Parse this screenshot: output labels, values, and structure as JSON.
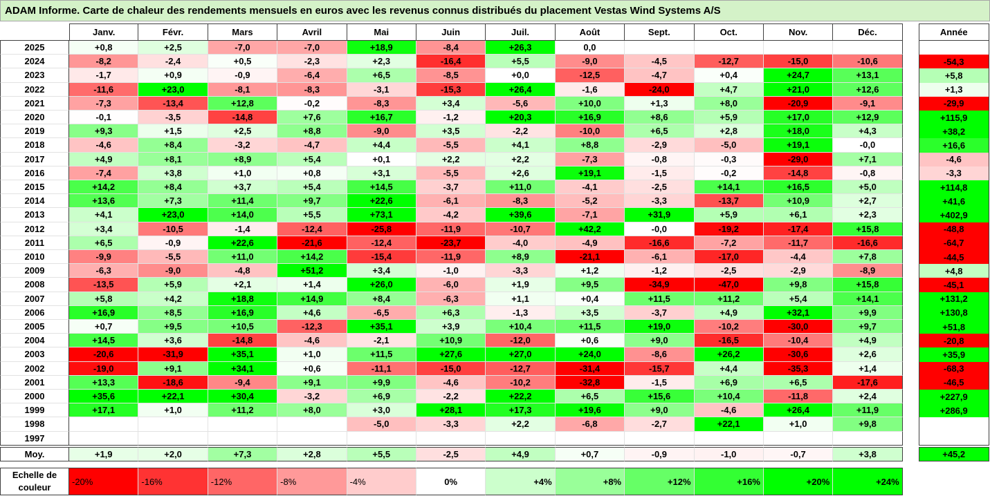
{
  "colors": {
    "title_bar": "#d4f2c8",
    "border": "#3f3f3f"
  },
  "chart_data": {
    "type": "heatmap",
    "title": "ADAM Informe. Carte de chaleur des rendements mensuels en euros avec les revenus connus distribués du placement Vestas Wind Systems A/S",
    "columns": [
      "Janv.",
      "Févr.",
      "Mars",
      "Avril",
      "Mai",
      "Juin",
      "Juil.",
      "Août",
      "Sept.",
      "Oct.",
      "Nov.",
      "Déc."
    ],
    "annual_label": "Année",
    "rows": [
      {
        "year": "2025",
        "values": [
          "+0,8",
          "+2,5",
          "-7,0",
          "-7,0",
          "+18,9",
          "-8,4",
          "+26,3",
          "0,0",
          "",
          "",
          "",
          ""
        ],
        "annual": ""
      },
      {
        "year": "2024",
        "values": [
          "-8,2",
          "-2,4",
          "+0,5",
          "-2,3",
          "+2,3",
          "-16,4",
          "+5,5",
          "-9,0",
          "-4,5",
          "-12,7",
          "-15,0",
          "-10,6"
        ],
        "annual": "-54,3"
      },
      {
        "year": "2023",
        "values": [
          "-1,7",
          "+0,9",
          "-0,9",
          "-6,4",
          "+6,5",
          "-8,5",
          "+0,0",
          "-12,5",
          "-4,7",
          "+0,4",
          "+24,7",
          "+13,1"
        ],
        "annual": "+5,8"
      },
      {
        "year": "2022",
        "values": [
          "-11,6",
          "+23,0",
          "-8,1",
          "-8,3",
          "-3,1",
          "-15,3",
          "+26,4",
          "-1,6",
          "-24,0",
          "+4,7",
          "+21,0",
          "+12,6"
        ],
        "annual": "+1,3"
      },
      {
        "year": "2021",
        "values": [
          "-7,3",
          "-13,4",
          "+12,8",
          "-0,2",
          "-8,3",
          "+3,4",
          "-5,6",
          "+10,0",
          "+1,3",
          "+8,0",
          "-20,9",
          "-9,1"
        ],
        "annual": "-29,9"
      },
      {
        "year": "2020",
        "values": [
          "-0,1",
          "-3,5",
          "-14,8",
          "+7,6",
          "+16,7",
          "-1,2",
          "+20,3",
          "+16,9",
          "+8,6",
          "+5,9",
          "+17,0",
          "+12,9"
        ],
        "annual": "+115,9"
      },
      {
        "year": "2019",
        "values": [
          "+9,3",
          "+1,5",
          "+2,5",
          "+8,8",
          "-9,0",
          "+3,5",
          "-2,2",
          "-10,0",
          "+6,5",
          "+2,8",
          "+18,0",
          "+4,3"
        ],
        "annual": "+38,2"
      },
      {
        "year": "2018",
        "values": [
          "-4,6",
          "+8,4",
          "-3,2",
          "-4,7",
          "+4,4",
          "-5,5",
          "+4,1",
          "+8,8",
          "-2,9",
          "-5,0",
          "+19,1",
          "-0,0"
        ],
        "annual": "+16,6"
      },
      {
        "year": "2017",
        "values": [
          "+4,9",
          "+8,1",
          "+8,9",
          "+5,4",
          "+0,1",
          "+2,2",
          "+2,2",
          "-7,3",
          "-0,8",
          "-0,3",
          "-29,0",
          "+7,1"
        ],
        "annual": "-4,6"
      },
      {
        "year": "2016",
        "values": [
          "-7,4",
          "+3,8",
          "+1,0",
          "+0,8",
          "+3,1",
          "-5,5",
          "+2,6",
          "+19,1",
          "-1,5",
          "-0,2",
          "-14,8",
          "-0,8"
        ],
        "annual": "-3,3"
      },
      {
        "year": "2015",
        "values": [
          "+14,2",
          "+8,4",
          "+3,7",
          "+5,4",
          "+14,5",
          "-3,7",
          "+11,0",
          "-4,1",
          "-2,5",
          "+14,1",
          "+16,5",
          "+5,0"
        ],
        "annual": "+114,8"
      },
      {
        "year": "2014",
        "values": [
          "+13,6",
          "+7,3",
          "+11,4",
          "+9,7",
          "+22,6",
          "-6,1",
          "-8,3",
          "-5,2",
          "-3,3",
          "-13,7",
          "+10,9",
          "+2,7"
        ],
        "annual": "+41,6"
      },
      {
        "year": "2013",
        "values": [
          "+4,1",
          "+23,0",
          "+14,0",
          "+5,5",
          "+73,1",
          "-4,2",
          "+39,6",
          "-7,1",
          "+31,9",
          "+5,9",
          "+6,1",
          "+2,3"
        ],
        "annual": "+402,9"
      },
      {
        "year": "2012",
        "values": [
          "+3,4",
          "-10,5",
          "-1,4",
          "-12,4",
          "-25,8",
          "-11,9",
          "-10,7",
          "+42,2",
          "-0,0",
          "-19,2",
          "-17,4",
          "+15,8"
        ],
        "annual": "-48,8"
      },
      {
        "year": "2011",
        "values": [
          "+6,5",
          "-0,9",
          "+22,6",
          "-21,6",
          "-12,4",
          "-23,7",
          "-4,0",
          "-4,9",
          "-16,6",
          "-7,2",
          "-11,7",
          "-16,6"
        ],
        "annual": "-64,7"
      },
      {
        "year": "2010",
        "values": [
          "-9,9",
          "-5,5",
          "+11,0",
          "+14,2",
          "-15,4",
          "-11,9",
          "+8,9",
          "-21,1",
          "-6,1",
          "-17,0",
          "-4,4",
          "+7,8"
        ],
        "annual": "-44,5"
      },
      {
        "year": "2009",
        "values": [
          "-6,3",
          "-9,0",
          "-4,8",
          "+51,2",
          "+3,4",
          "-1,0",
          "-3,3",
          "+1,2",
          "-1,2",
          "-2,5",
          "-2,9",
          "-8,9"
        ],
        "annual": "+4,8"
      },
      {
        "year": "2008",
        "values": [
          "-13,5",
          "+5,9",
          "+2,1",
          "+1,4",
          "+26,0",
          "-6,0",
          "+1,9",
          "+9,5",
          "-34,9",
          "-47,0",
          "+9,8",
          "+15,8"
        ],
        "annual": "-45,1"
      },
      {
        "year": "2007",
        "values": [
          "+5,8",
          "+4,2",
          "+18,8",
          "+14,9",
          "+8,4",
          "-6,3",
          "+1,1",
          "+0,4",
          "+11,5",
          "+11,2",
          "+5,4",
          "+14,1"
        ],
        "annual": "+131,2"
      },
      {
        "year": "2006",
        "values": [
          "+16,9",
          "+8,5",
          "+16,9",
          "+4,6",
          "-6,5",
          "+6,3",
          "-1,3",
          "+3,5",
          "-3,7",
          "+4,9",
          "+32,1",
          "+9,9"
        ],
        "annual": "+130,8"
      },
      {
        "year": "2005",
        "values": [
          "+0,7",
          "+9,5",
          "+10,5",
          "-12,3",
          "+35,1",
          "+3,9",
          "+10,4",
          "+11,5",
          "+19,0",
          "-10,2",
          "-30,0",
          "+9,7"
        ],
        "annual": "+51,8"
      },
      {
        "year": "2004",
        "values": [
          "+14,5",
          "+3,6",
          "-14,8",
          "-4,6",
          "-2,1",
          "+10,9",
          "-12,0",
          "+0,6",
          "+9,0",
          "-16,5",
          "-10,4",
          "+4,9"
        ],
        "annual": "-20,8"
      },
      {
        "year": "2003",
        "values": [
          "-20,6",
          "-31,9",
          "+35,1",
          "+1,0",
          "+11,5",
          "+27,6",
          "+27,0",
          "+24,0",
          "-8,6",
          "+26,2",
          "-30,6",
          "+2,6"
        ],
        "annual": "+35,9"
      },
      {
        "year": "2002",
        "values": [
          "-19,0",
          "+9,1",
          "+34,1",
          "+0,6",
          "-11,1",
          "-15,0",
          "-12,7",
          "-31,4",
          "-15,7",
          "+4,4",
          "-35,3",
          "+1,4"
        ],
        "annual": "-68,3"
      },
      {
        "year": "2001",
        "values": [
          "+13,3",
          "-18,6",
          "-9,4",
          "+9,1",
          "+9,9",
          "-4,6",
          "-10,2",
          "-32,8",
          "-1,5",
          "+6,9",
          "+6,5",
          "-17,6"
        ],
        "annual": "-46,5"
      },
      {
        "year": "2000",
        "values": [
          "+35,6",
          "+22,1",
          "+30,4",
          "-3,2",
          "+6,9",
          "-2,2",
          "+22,2",
          "+6,5",
          "+15,6",
          "+10,4",
          "-11,8",
          "+2,4"
        ],
        "annual": "+227,9"
      },
      {
        "year": "1999",
        "values": [
          "+17,1",
          "+1,0",
          "+11,2",
          "+8,0",
          "+3,0",
          "+28,1",
          "+17,3",
          "+19,6",
          "+9,0",
          "-4,6",
          "+26,4",
          "+11,9"
        ],
        "annual": "+286,9"
      },
      {
        "year": "1998",
        "values": [
          "",
          "",
          "",
          "",
          "-5,0",
          "-3,3",
          "+2,2",
          "-6,8",
          "-2,7",
          "+22,1",
          "+1,0",
          "+9,8"
        ],
        "annual": ""
      },
      {
        "year": "1997",
        "values": [
          "",
          "",
          "",
          "",
          "",
          "",
          "",
          "",
          "",
          "",
          "",
          ""
        ],
        "annual": ""
      }
    ],
    "average": {
      "label": "Moy.",
      "values": [
        "+1,9",
        "+2,0",
        "+7,3",
        "+2,8",
        "+5,5",
        "-2,5",
        "+4,9",
        "+0,7",
        "-0,9",
        "-1,0",
        "-0,7",
        "+3,8"
      ],
      "annual": "+45,2"
    },
    "color_scale": {
      "label": "Echelle de couleur",
      "steps": [
        "-20%",
        "-16%",
        "-12%",
        "-8%",
        "-4%",
        "0%",
        "+4%",
        "+8%",
        "+12%",
        "+16%",
        "+20%",
        "+24%"
      ],
      "range": [
        -20,
        20
      ],
      "colors": {
        "negative": "#ff0000",
        "neutral": "#ffffff",
        "positive": "#00ff00"
      }
    }
  }
}
